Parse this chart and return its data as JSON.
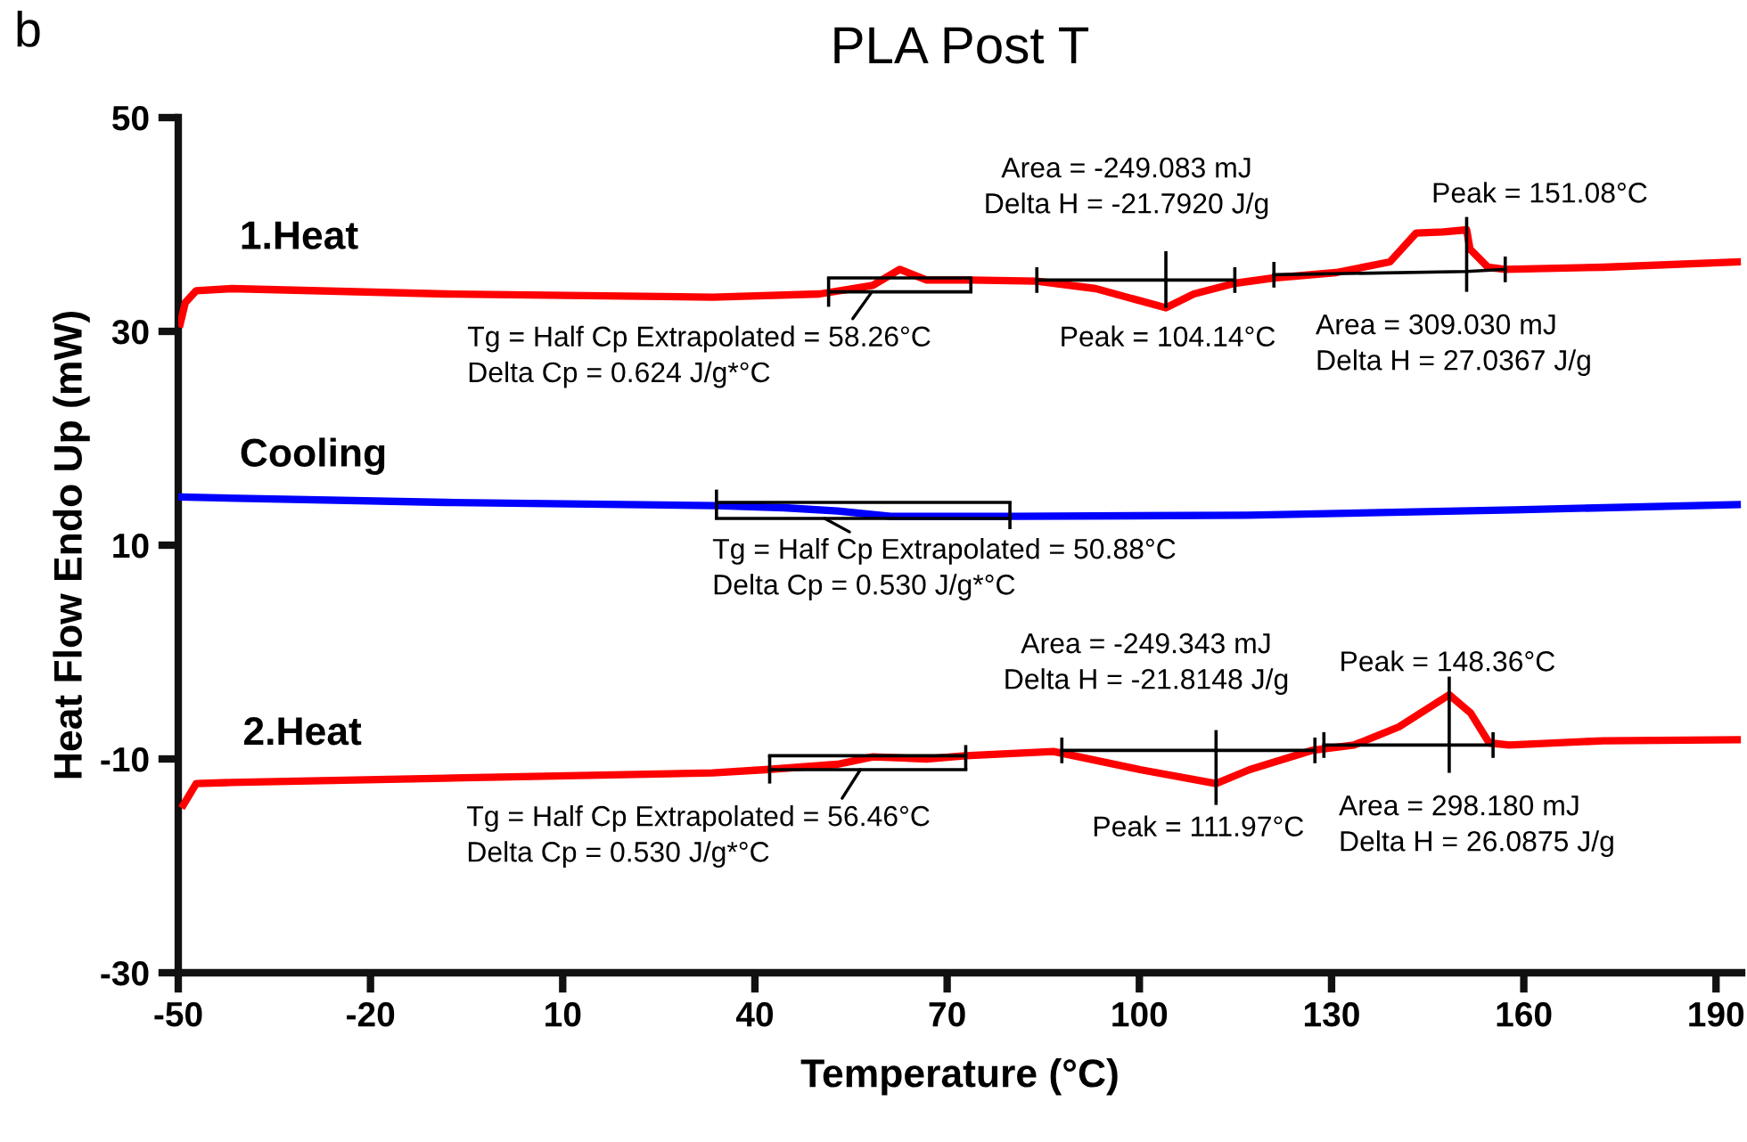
{
  "chart_data": {
    "type": "line",
    "title": "PLA Post T",
    "xlabel": "Temperature (°C)",
    "ylabel": "Heat Flow Endo Up (mW)",
    "xlim": [
      -50,
      194
    ],
    "xticks": [
      -50,
      -20,
      10,
      40,
      70,
      100,
      130,
      160,
      190
    ],
    "ylim": [
      -30,
      50
    ],
    "yticks": [
      -30,
      -10,
      10,
      30,
      50
    ],
    "grid": false,
    "series": [
      {
        "name": "1.Heat",
        "color": "#ff0000",
        "x": [
          -49.7,
          -48.9,
          -47.2,
          -41.7,
          -8.3,
          33.4,
          50.1,
          58.4,
          62.6,
          66.8,
          73.7,
          84.0,
          93.2,
          104.14,
          108.5,
          114.9,
          121.0,
          130.7,
          139.1,
          143.2,
          147.4,
          151.08,
          151.6,
          154.4,
          157.1,
          172.4,
          193.3
        ],
        "values": [
          30.7,
          32.7,
          33.8,
          34.0,
          33.5,
          33.2,
          33.5,
          34.3,
          35.8,
          34.8,
          34.8,
          34.7,
          34.0,
          32.2,
          33.5,
          34.5,
          35.0,
          35.5,
          36.5,
          39.2,
          39.3,
          39.5,
          37.7,
          36.0,
          35.8,
          36.0,
          36.5
        ]
      },
      {
        "name": "Cooling",
        "color": "#0000ff",
        "x": [
          -49.7,
          -8.3,
          34.0,
          44.5,
          52.9,
          61.2,
          80.7,
          116.8,
          158.5,
          193.3
        ],
        "values": [
          14.5,
          14.0,
          13.7,
          13.5,
          13.2,
          12.7,
          12.7,
          12.8,
          13.3,
          13.8
        ]
      },
      {
        "name": "2.Heat",
        "color": "#ff0000",
        "x": [
          -49.2,
          -47.2,
          -41.7,
          -8.3,
          33.4,
          41.7,
          52.9,
          58.4,
          66.8,
          72.9,
          86.6,
          100.1,
          111.97,
          117.2,
          126.9,
          133.5,
          140.5,
          148.36,
          151.7,
          154.6,
          157.7,
          172.4,
          193.3
        ],
        "values": [
          -14.3,
          -12.3,
          -12.2,
          -11.8,
          -11.3,
          -11.0,
          -10.5,
          -9.8,
          -10.0,
          -9.7,
          -9.3,
          -11.0,
          -12.3,
          -11.0,
          -9.2,
          -8.7,
          -7.0,
          -4.0,
          -5.7,
          -8.5,
          -8.7,
          -8.3,
          -8.2
        ]
      },
      {
        "color": "#000000",
        "x": [
          84.0,
          104.14,
          114.9
        ],
        "values": [
          34.8,
          34.8,
          34.8
        ],
        "errors": [
          [
            33.6,
            36.0
          ],
          [
            32.2,
            37.5
          ],
          [
            33.6,
            36.0
          ]
        ]
      },
      {
        "color": "#000000",
        "x": [
          121.0,
          151.08,
          157.1
        ],
        "values": [
          35.3,
          35.6,
          35.8
        ],
        "errors": [
          [
            34.1,
            36.5
          ],
          [
            33.7,
            40.7
          ],
          [
            34.6,
            37.0
          ]
        ]
      },
      {
        "color": "#000000",
        "x": [
          51.5,
          73.7
        ],
        "values": [
          35.0,
          35.0
        ]
      },
      {
        "color": "#000000",
        "x": [
          51.5,
          73.7
        ],
        "values": [
          33.7,
          33.7
        ],
        "errors": [
          [
            32.3,
            35.0
          ],
          [
            33.7,
            35.0
          ]
        ]
      },
      {
        "color": "#000000",
        "x": [
          34.0,
          79.8
        ],
        "values": [
          14.0,
          14.0
        ]
      },
      {
        "color": "#000000",
        "x": [
          34.0,
          79.8
        ],
        "values": [
          12.5,
          12.5
        ],
        "errors": [
          [
            12.5,
            15.2
          ],
          [
            11.5,
            14.0
          ]
        ]
      },
      {
        "color": "#000000",
        "x": [
          42.3,
          72.9
        ],
        "values": [
          -9.7,
          -9.7
        ]
      },
      {
        "color": "#000000",
        "x": [
          42.3,
          72.9
        ],
        "values": [
          -11.0,
          -11.0
        ],
        "errors": [
          [
            -12.3,
            -9.7
          ],
          [
            -11.0,
            -8.7
          ]
        ]
      },
      {
        "color": "#000000",
        "x": [
          87.9,
          111.97,
          127.4
        ],
        "values": [
          -9.2,
          -9.2,
          -9.2
        ],
        "errors": [
          [
            -10.4,
            -8.0
          ],
          [
            -14.3,
            -7.3
          ],
          [
            -10.4,
            -8.0
          ]
        ]
      },
      {
        "color": "#000000",
        "x": [
          128.8,
          148.36,
          155.2
        ],
        "values": [
          -8.7,
          -8.7,
          -8.7
        ],
        "errors": [
          [
            -9.9,
            -7.5
          ],
          [
            -11.3,
            -2.3
          ],
          [
            -9.9,
            -7.5
          ]
        ]
      }
    ],
    "annotations": [
      "b",
      {
        "text": "Tg = Half Cp Extrapolated = 58.26°C\nDelta Cp = 0.624 J/g*°C",
        "x": 58.26,
        "y": 33.7
      },
      "Area = -249.083 mJ\nDelta H = -21.7920 J/g",
      {
        "text": "Peak = 104.14°C",
        "x": 104.14,
        "y": 32.2
      },
      {
        "text": "Peak = 151.08°C",
        "x": 151.08,
        "y": 39.5
      },
      "Area = 309.030 mJ\nDelta H = 27.0367 J/g",
      {
        "text": "Tg = Half Cp Extrapolated = 50.88°C\nDelta Cp = 0.530 J/g*°C",
        "x": 50.88,
        "y": 12.5
      },
      "Area = -249.343 mJ\nDelta H = -21.8148 J/g",
      {
        "text": "Peak = 111.97°C",
        "x": 111.97,
        "y": -12.3
      },
      {
        "text": "Peak = 148.36°C",
        "x": 148.36,
        "y": -4.0
      },
      "Area = 298.180 mJ\nDelta H = 26.0875 J/g",
      {
        "text": "Tg = Half Cp Extrapolated = 56.46°C\nDelta Cp = 0.530 J/g*°C",
        "x": 56.46,
        "y": -11.0
      }
    ]
  }
}
